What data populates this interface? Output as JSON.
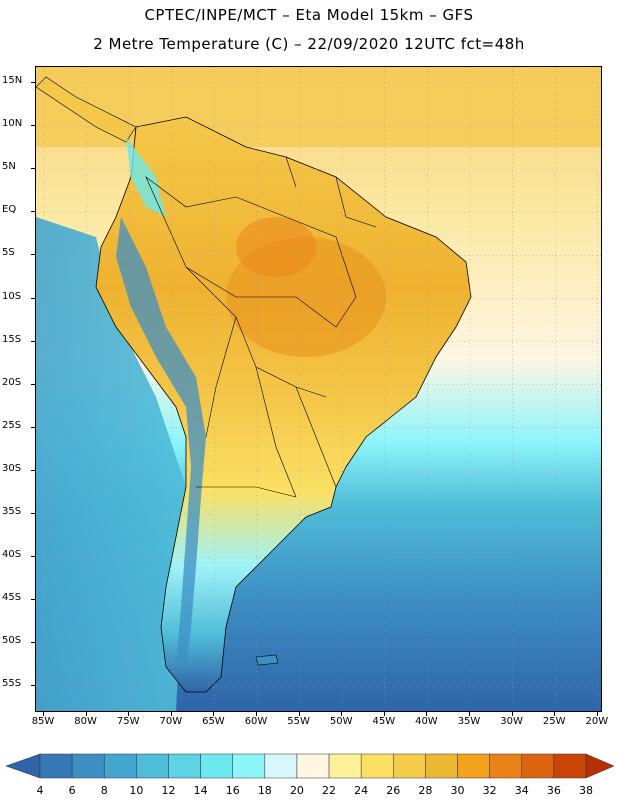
{
  "header": {
    "line1": "CPTEC/INPE/MCT –  Eta Model 15km – GFS",
    "line2": "2 Metre Temperature (C) – 22/09/2020 12UTC fct=48h"
  },
  "map": {
    "lat_labels": [
      "15N",
      "10N",
      "5N",
      "EQ",
      "5S",
      "10S",
      "15S",
      "20S",
      "25S",
      "30S",
      "35S",
      "40S",
      "45S",
      "50S",
      "55S"
    ],
    "lon_labels": [
      "85W",
      "80W",
      "75W",
      "70W",
      "65W",
      "60W",
      "55W",
      "50W",
      "45W",
      "40W",
      "35W",
      "30W",
      "25W",
      "20W"
    ]
  },
  "colorbar": {
    "labels": [
      "4",
      "6",
      "8",
      "10",
      "12",
      "14",
      "16",
      "18",
      "20",
      "22",
      "24",
      "26",
      "28",
      "30",
      "32",
      "34",
      "36",
      "38"
    ],
    "colors": [
      "#2f64a8",
      "#3677b6",
      "#3d8fc4",
      "#45a6cf",
      "#4fbdd9",
      "#5dd3e3",
      "#6ce9ee",
      "#8ef5fb",
      "#d8f7fb",
      "#fff6e3",
      "#fff09a",
      "#fbe063",
      "#f5cc49",
      "#efb833",
      "#f2a31c",
      "#e98218",
      "#dd6410",
      "#c94608",
      "#b82f05"
    ]
  }
}
